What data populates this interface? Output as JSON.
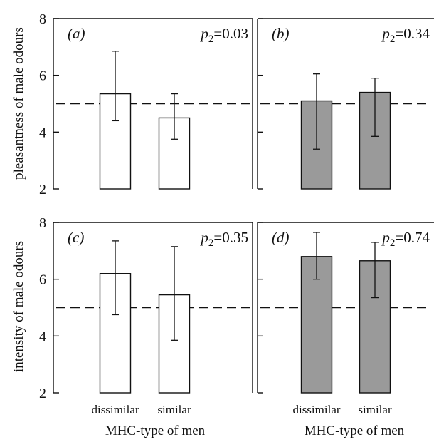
{
  "figure": {
    "ylabels": [
      "pleasantness of male odours",
      "intensity of male odours"
    ],
    "xlabels": [
      "MHC-type of men",
      "MHC-type of men"
    ]
  },
  "colors": {
    "open_bar": "#ffffff",
    "filled_bar": "#9a9a9a",
    "stroke": "#111111"
  },
  "chart_data": [
    {
      "type": "bar",
      "panel_label": "(a)",
      "stat": {
        "p_letter": "p",
        "p_sub": "2",
        "p_value": "=0.03"
      },
      "categories": [
        "dissimilar",
        "similar"
      ],
      "values": [
        5.35,
        4.5
      ],
      "error_low": [
        4.4,
        3.75
      ],
      "error_high": [
        6.85,
        5.35
      ],
      "reference_line": 5,
      "ylim": [
        2,
        8
      ],
      "yticks": [
        "2",
        "4",
        "6",
        "8"
      ],
      "bar_style": "open",
      "grid": false
    },
    {
      "type": "bar",
      "panel_label": "(b)",
      "stat": {
        "p_letter": "p",
        "p_sub": "2",
        "p_value": "=0.34"
      },
      "categories": [
        "dissimilar",
        "similar"
      ],
      "values": [
        5.1,
        5.4
      ],
      "error_low": [
        3.4,
        3.85
      ],
      "error_high": [
        6.05,
        5.9
      ],
      "reference_line": 5,
      "ylim": [
        2,
        8
      ],
      "yticks": [
        "2",
        "4",
        "6",
        "8"
      ],
      "bar_style": "filled",
      "grid": false
    },
    {
      "type": "bar",
      "panel_label": "(c)",
      "stat": {
        "p_letter": "p",
        "p_sub": "2",
        "p_value": "=0.35"
      },
      "categories": [
        "dissimilar",
        "similar"
      ],
      "values": [
        6.2,
        5.45
      ],
      "error_low": [
        4.75,
        3.85
      ],
      "error_high": [
        7.35,
        7.15
      ],
      "reference_line": 5,
      "ylim": [
        2,
        8
      ],
      "yticks": [
        "2",
        "4",
        "6",
        "8"
      ],
      "bar_style": "open",
      "grid": false
    },
    {
      "type": "bar",
      "panel_label": "(d)",
      "stat": {
        "p_letter": "p",
        "p_sub": "2",
        "p_value": "=0.74"
      },
      "categories": [
        "dissimilar",
        "similar"
      ],
      "values": [
        6.8,
        6.65
      ],
      "error_low": [
        6.0,
        5.35
      ],
      "error_high": [
        7.65,
        7.3
      ],
      "reference_line": 5,
      "ylim": [
        2,
        8
      ],
      "yticks": [
        "2",
        "4",
        "6",
        "8"
      ],
      "bar_style": "filled",
      "grid": false
    }
  ]
}
